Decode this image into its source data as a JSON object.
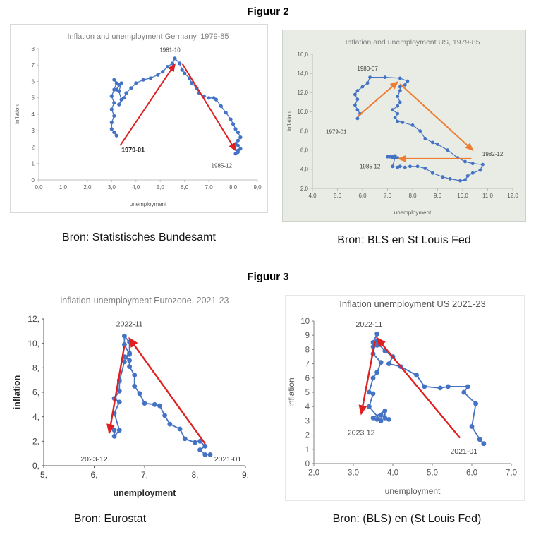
{
  "page": {
    "figure2_heading": "Figuur 2",
    "figure3_heading": "Figuur 3",
    "captions": {
      "germany": "Bron: Statistisches Bundesamt",
      "us_1979": "Bron: BLS en St Louis Fed",
      "eurozone": "Bron: Eurostat",
      "us_2021": "Bron: (BLS) en (St Louis Fed)"
    }
  },
  "chart_data": [
    {
      "type": "scatter",
      "title": "Inflation and unemployment Germany, 1979-85",
      "title_color": "#7f7f7f",
      "xlabel": "unemployment",
      "ylabel": "inflation",
      "xlim": [
        0,
        9
      ],
      "ylim": [
        0,
        8
      ],
      "xticks": [
        [
          0,
          "0,0"
        ],
        [
          1,
          "1,0"
        ],
        [
          2,
          "2,0"
        ],
        [
          3,
          "3,0"
        ],
        [
          4,
          "4,0"
        ],
        [
          5,
          "5,0"
        ],
        [
          6,
          "6,0"
        ],
        [
          7,
          "7,0"
        ],
        [
          8,
          "8,0"
        ],
        [
          9,
          "9,0"
        ]
      ],
      "yticks": [
        [
          0,
          "0"
        ],
        [
          1,
          "1"
        ],
        [
          2,
          "2"
        ],
        [
          3,
          "3"
        ],
        [
          4,
          "4"
        ],
        [
          5,
          "5"
        ],
        [
          6,
          "6"
        ],
        [
          7,
          "7"
        ],
        [
          8,
          "8"
        ]
      ],
      "series_color": "#4472c4",
      "points": [
        [
          3.2,
          2.7
        ],
        [
          3.1,
          2.9
        ],
        [
          3.0,
          3.1
        ],
        [
          3.0,
          3.5
        ],
        [
          3.1,
          3.9
        ],
        [
          3.0,
          4.3
        ],
        [
          3.1,
          4.7
        ],
        [
          3.0,
          5.1
        ],
        [
          3.1,
          5.5
        ],
        [
          3.2,
          5.9
        ],
        [
          3.1,
          6.1
        ],
        [
          3.3,
          5.8
        ],
        [
          3.2,
          5.5
        ],
        [
          3.4,
          5.9
        ],
        [
          3.3,
          5.4
        ],
        [
          3.4,
          4.9
        ],
        [
          3.3,
          4.6
        ],
        [
          3.5,
          5.0
        ],
        [
          3.6,
          5.3
        ],
        [
          3.8,
          5.6
        ],
        [
          4.0,
          5.9
        ],
        [
          4.3,
          6.1
        ],
        [
          4.6,
          6.2
        ],
        [
          4.9,
          6.4
        ],
        [
          5.1,
          6.6
        ],
        [
          5.3,
          6.9
        ],
        [
          5.5,
          7.1
        ],
        [
          5.6,
          7.4
        ],
        [
          5.8,
          7.1
        ],
        [
          5.9,
          6.7
        ],
        [
          6.0,
          6.5
        ],
        [
          6.2,
          6.2
        ],
        [
          6.3,
          5.9
        ],
        [
          6.5,
          5.6
        ],
        [
          6.6,
          5.3
        ],
        [
          6.8,
          5.1
        ],
        [
          7.0,
          5.0
        ],
        [
          7.2,
          5.0
        ],
        [
          7.3,
          4.9
        ],
        [
          7.5,
          4.5
        ],
        [
          7.7,
          4.1
        ],
        [
          7.9,
          3.7
        ],
        [
          8.0,
          3.4
        ],
        [
          8.1,
          3.1
        ],
        [
          8.2,
          2.9
        ],
        [
          8.3,
          2.6
        ],
        [
          8.2,
          2.4
        ],
        [
          8.1,
          2.2
        ],
        [
          8.2,
          2.1
        ],
        [
          8.3,
          1.9
        ],
        [
          8.2,
          1.7
        ],
        [
          8.1,
          1.6
        ],
        [
          8.2,
          1.8
        ]
      ],
      "arrows": [
        {
          "from": [
            3.35,
            2.1
          ],
          "to": [
            5.6,
            7.05
          ],
          "color": "#e02020"
        },
        {
          "from": [
            5.9,
            7.1
          ],
          "to": [
            8.1,
            1.8
          ],
          "color": "#e02020"
        }
      ],
      "annotations": [
        {
          "text": "1981-10",
          "x": 5.4,
          "y": 7.8
        },
        {
          "text": "1979-01",
          "x": 3.4,
          "y": 1.7,
          "anchor": "start",
          "bold": true,
          "color": "#1a1a1a",
          "size": 9
        },
        {
          "text": "1985-12",
          "x": 7.1,
          "y": 0.75,
          "anchor": "start"
        }
      ]
    },
    {
      "type": "scatter",
      "title": "Inflation and unemployment US, 1979-85",
      "title_color": "#7f7f7f",
      "xlabel": "unemployment",
      "ylabel": "inflation",
      "xlim": [
        4,
        12
      ],
      "ylim": [
        2,
        16
      ],
      "xticks": [
        [
          4,
          "4,0"
        ],
        [
          5,
          "5,0"
        ],
        [
          6,
          "6,0"
        ],
        [
          7,
          "7,0"
        ],
        [
          8,
          "8,0"
        ],
        [
          9,
          "9,0"
        ],
        [
          10,
          "10,0"
        ],
        [
          11,
          "11,0"
        ],
        [
          12,
          "12,0"
        ]
      ],
      "yticks": [
        [
          2,
          "2,0"
        ],
        [
          4,
          "4,0"
        ],
        [
          6,
          "6,0"
        ],
        [
          8,
          "8,0"
        ],
        [
          10,
          "10,0"
        ],
        [
          12,
          "12,0"
        ],
        [
          14,
          "14,0"
        ],
        [
          16,
          "16,0"
        ]
      ],
      "series_color": "#4472c4",
      "points": [
        [
          5.8,
          9.3
        ],
        [
          5.9,
          9.8
        ],
        [
          5.8,
          10.2
        ],
        [
          5.7,
          10.7
        ],
        [
          5.8,
          11.3
        ],
        [
          5.7,
          11.8
        ],
        [
          5.8,
          12.2
        ],
        [
          6.0,
          12.6
        ],
        [
          6.2,
          13.0
        ],
        [
          6.3,
          13.6
        ],
        [
          6.9,
          13.6
        ],
        [
          7.5,
          13.5
        ],
        [
          7.8,
          13.2
        ],
        [
          7.7,
          12.8
        ],
        [
          7.5,
          12.6
        ],
        [
          7.5,
          12.2
        ],
        [
          7.4,
          11.6
        ],
        [
          7.5,
          11.0
        ],
        [
          7.4,
          10.6
        ],
        [
          7.2,
          10.2
        ],
        [
          7.4,
          9.8
        ],
        [
          7.3,
          9.4
        ],
        [
          7.4,
          9.0
        ],
        [
          7.6,
          8.9
        ],
        [
          8.0,
          8.6
        ],
        [
          8.3,
          8.0
        ],
        [
          8.5,
          7.2
        ],
        [
          8.8,
          6.8
        ],
        [
          9.0,
          6.6
        ],
        [
          9.4,
          6.0
        ],
        [
          9.8,
          5.2
        ],
        [
          10.1,
          4.8
        ],
        [
          10.4,
          4.6
        ],
        [
          10.8,
          4.5
        ],
        [
          10.7,
          3.9
        ],
        [
          10.4,
          3.6
        ],
        [
          10.2,
          3.3
        ],
        [
          10.1,
          2.9
        ],
        [
          9.9,
          2.8
        ],
        [
          9.5,
          3.0
        ],
        [
          9.2,
          3.2
        ],
        [
          8.8,
          3.6
        ],
        [
          8.5,
          4.1
        ],
        [
          8.2,
          4.3
        ],
        [
          7.9,
          4.3
        ],
        [
          7.7,
          4.2
        ],
        [
          7.5,
          4.3
        ],
        [
          7.4,
          4.2
        ],
        [
          7.2,
          4.3
        ],
        [
          7.3,
          5.2
        ],
        [
          7.2,
          5.3
        ],
        [
          7.4,
          5.2
        ],
        [
          7.3,
          5.4
        ],
        [
          7.2,
          5.2
        ],
        [
          7.1,
          5.3
        ],
        [
          7.0,
          5.3
        ]
      ],
      "arrows": [
        {
          "from": [
            5.8,
            9.5
          ],
          "to": [
            7.4,
            13.1
          ],
          "color": "#ed7d31"
        },
        {
          "from": [
            7.5,
            12.9
          ],
          "to": [
            10.4,
            6.0
          ],
          "color": "#ed7d31"
        },
        {
          "from": [
            10.35,
            5.1
          ],
          "to": [
            7.45,
            5.1
          ],
          "color": "#ed7d31"
        }
      ],
      "annotations": [
        {
          "text": "1980-07",
          "x": 6.2,
          "y": 14.3
        },
        {
          "text": "1979-01",
          "x": 4.95,
          "y": 7.7
        },
        {
          "text": "1985-12",
          "x": 6.3,
          "y": 4.1
        },
        {
          "text": "1982-12",
          "x": 11.2,
          "y": 5.4
        }
      ]
    },
    {
      "type": "scatter",
      "title": "inflation-unemployment Eurozone, 2021-23",
      "title_color": "#808080",
      "xlabel": "unemployment",
      "ylabel": "inflation",
      "xlim": [
        5,
        9
      ],
      "ylim": [
        0,
        12
      ],
      "xticks": [
        [
          5,
          "5,"
        ],
        [
          6,
          "6,"
        ],
        [
          7,
          "7,"
        ],
        [
          8,
          "8,"
        ],
        [
          9,
          "9,"
        ]
      ],
      "yticks": [
        [
          0,
          "0,"
        ],
        [
          2,
          "2,"
        ],
        [
          4,
          "4,"
        ],
        [
          6,
          "6,"
        ],
        [
          8,
          "8,"
        ],
        [
          10,
          "10,"
        ],
        [
          12,
          "12,"
        ]
      ],
      "series_color": "#4472c4",
      "points": [
        [
          8.3,
          0.9
        ],
        [
          8.2,
          0.9
        ],
        [
          8.1,
          1.3
        ],
        [
          8.2,
          1.6
        ],
        [
          8.1,
          2.0
        ],
        [
          8.0,
          1.9
        ],
        [
          7.8,
          2.2
        ],
        [
          7.7,
          3.0
        ],
        [
          7.5,
          3.4
        ],
        [
          7.4,
          4.1
        ],
        [
          7.3,
          4.9
        ],
        [
          7.2,
          5.0
        ],
        [
          7.0,
          5.1
        ],
        [
          6.9,
          5.9
        ],
        [
          6.8,
          6.5
        ],
        [
          6.8,
          7.4
        ],
        [
          6.7,
          8.1
        ],
        [
          6.7,
          8.6
        ],
        [
          6.6,
          8.9
        ],
        [
          6.7,
          9.1
        ],
        [
          6.6,
          9.9
        ],
        [
          6.6,
          10.6
        ],
        [
          6.7,
          10.1
        ],
        [
          6.7,
          9.2
        ],
        [
          6.6,
          8.5
        ],
        [
          6.5,
          6.9
        ],
        [
          6.5,
          7.0
        ],
        [
          6.5,
          6.1
        ],
        [
          6.4,
          5.5
        ],
        [
          6.5,
          5.2
        ],
        [
          6.4,
          4.3
        ],
        [
          6.5,
          2.9
        ],
        [
          6.4,
          2.4
        ],
        [
          6.4,
          2.9
        ]
      ],
      "arrows": [
        {
          "from": [
            8.2,
            1.8
          ],
          "to": [
            6.7,
            10.4
          ],
          "color": "#e02020"
        },
        {
          "from": [
            6.6,
            9.8
          ],
          "to": [
            6.3,
            2.7
          ],
          "color": "#e02020"
        }
      ],
      "annotations": [
        {
          "text": "2022-11",
          "x": 6.7,
          "y": 11.4
        },
        {
          "text": "2023-12",
          "x": 6.0,
          "y": 0.35
        },
        {
          "text": "2021-01",
          "x": 8.65,
          "y": 0.35
        }
      ]
    },
    {
      "type": "scatter",
      "title": "Inflation unemployment US 2021-23",
      "title_color": "#595959",
      "xlabel": "unemployment",
      "ylabel": "inflation",
      "xlim": [
        2,
        7
      ],
      "ylim": [
        0,
        10
      ],
      "xticks": [
        [
          2,
          "2,0"
        ],
        [
          3,
          "3,0"
        ],
        [
          4,
          "4,0"
        ],
        [
          5,
          "5,0"
        ],
        [
          6,
          "6,0"
        ],
        [
          7,
          "7,0"
        ]
      ],
      "yticks": [
        [
          0,
          "0"
        ],
        [
          1,
          "1"
        ],
        [
          2,
          "2"
        ],
        [
          3,
          "3"
        ],
        [
          4,
          "4"
        ],
        [
          5,
          "5"
        ],
        [
          6,
          "6"
        ],
        [
          7,
          "7"
        ],
        [
          8,
          "8"
        ],
        [
          9,
          "9"
        ],
        [
          10,
          "10"
        ]
      ],
      "series_color": "#4472c4",
      "points": [
        [
          6.3,
          1.4
        ],
        [
          6.2,
          1.7
        ],
        [
          6.0,
          2.6
        ],
        [
          6.1,
          4.2
        ],
        [
          5.8,
          5.0
        ],
        [
          5.9,
          5.4
        ],
        [
          5.4,
          5.4
        ],
        [
          5.2,
          5.3
        ],
        [
          4.8,
          5.4
        ],
        [
          4.6,
          6.2
        ],
        [
          4.2,
          6.8
        ],
        [
          3.9,
          7.0
        ],
        [
          4.0,
          7.5
        ],
        [
          3.8,
          7.9
        ],
        [
          3.6,
          8.5
        ],
        [
          3.6,
          8.3
        ],
        [
          3.6,
          8.6
        ],
        [
          3.6,
          9.1
        ],
        [
          3.5,
          8.5
        ],
        [
          3.5,
          8.2
        ],
        [
          3.5,
          7.7
        ],
        [
          3.7,
          7.1
        ],
        [
          3.6,
          6.4
        ],
        [
          3.5,
          6.0
        ],
        [
          3.4,
          5.0
        ],
        [
          3.5,
          4.9
        ],
        [
          3.4,
          4.0
        ],
        [
          3.7,
          3.0
        ],
        [
          3.5,
          3.2
        ],
        [
          3.8,
          3.7
        ],
        [
          3.8,
          3.2
        ],
        [
          3.9,
          3.1
        ],
        [
          3.7,
          3.4
        ],
        [
          3.6,
          3.1
        ],
        [
          3.7,
          3.4
        ]
      ],
      "arrows": [
        {
          "from": [
            5.7,
            1.8
          ],
          "to": [
            3.6,
            8.8
          ],
          "color": "#e02020"
        },
        {
          "from": [
            3.55,
            8.6
          ],
          "to": [
            3.2,
            3.5
          ],
          "color": "#e02020"
        }
      ],
      "annotations": [
        {
          "text": "2022-11",
          "x": 3.4,
          "y": 9.6
        },
        {
          "text": "2023-12",
          "x": 3.2,
          "y": 2.0
        },
        {
          "text": "2021-01",
          "x": 5.8,
          "y": 0.7
        }
      ]
    }
  ]
}
